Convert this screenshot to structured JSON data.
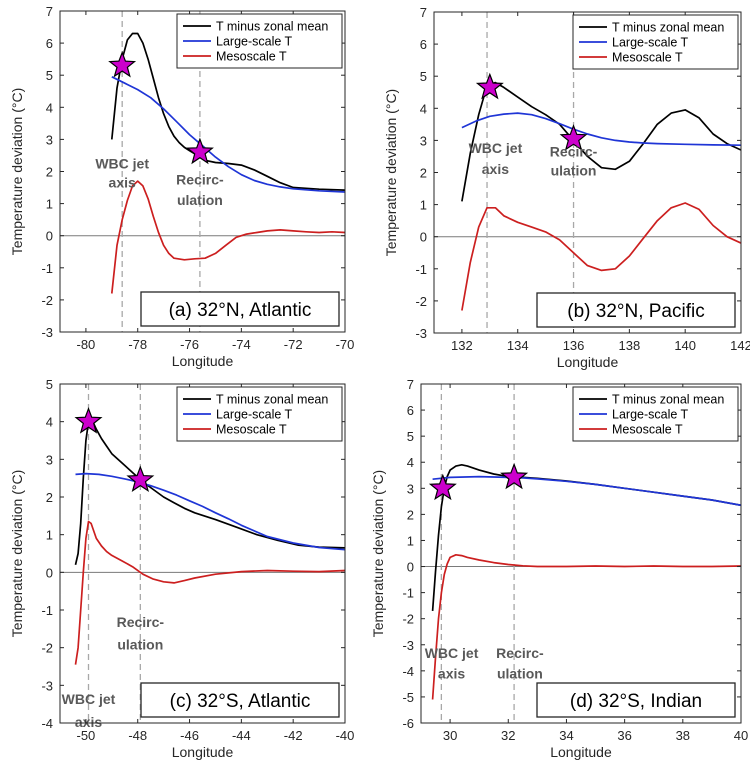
{
  "chart_data": [
    {
      "type": "line",
      "panel_label": "(a) 32°N, Atlantic",
      "xlabel": "Longitude",
      "ylabel": "Temperature deviation (°C)",
      "xlim": [
        -81,
        -70
      ],
      "ylim": [
        -3,
        7
      ],
      "xticks": [
        -80,
        -78,
        -76,
        -74,
        -72,
        -70
      ],
      "yticks": [
        -3,
        -2,
        -1,
        0,
        1,
        2,
        3,
        4,
        5,
        6,
        7
      ],
      "zero_line": true,
      "legend_position": "top-right",
      "series": [
        {
          "name": "T minus zonal mean",
          "color": "#000000",
          "x": [
            -79,
            -78.8,
            -78.6,
            -78.4,
            -78.2,
            -78,
            -77.8,
            -77.6,
            -77.4,
            -77.2,
            -77,
            -76.8,
            -76.6,
            -76.4,
            -76.2,
            -76,
            -75.8,
            -75.6,
            -75.4,
            -75,
            -74.5,
            -74,
            -73.5,
            -73,
            -72.5,
            -72,
            -71,
            -70
          ],
          "y": [
            3.0,
            4.6,
            5.5,
            6.1,
            6.3,
            6.3,
            6.0,
            5.5,
            4.9,
            4.3,
            3.8,
            3.4,
            3.1,
            2.9,
            2.75,
            2.65,
            2.55,
            2.45,
            2.35,
            2.28,
            2.25,
            2.2,
            2.05,
            1.85,
            1.65,
            1.5,
            1.45,
            1.42
          ]
        },
        {
          "name": "Large-scale T",
          "color": "#1f35d6",
          "x": [
            -79,
            -78.5,
            -78,
            -77.5,
            -77,
            -76.5,
            -76,
            -75.5,
            -75,
            -74.5,
            -74,
            -73.5,
            -73,
            -72.5,
            -72,
            -71,
            -70
          ],
          "y": [
            4.95,
            4.75,
            4.55,
            4.3,
            3.95,
            3.55,
            3.15,
            2.8,
            2.45,
            2.15,
            1.9,
            1.72,
            1.6,
            1.52,
            1.46,
            1.4,
            1.36
          ]
        },
        {
          "name": "Mesoscale T",
          "color": "#cc1f1f",
          "x": [
            -79,
            -78.8,
            -78.6,
            -78.4,
            -78.2,
            -78,
            -77.8,
            -77.6,
            -77.4,
            -77.2,
            -77,
            -76.8,
            -76.6,
            -76.2,
            -75.8,
            -75.4,
            -75,
            -74.6,
            -74.2,
            -73.8,
            -73.4,
            -73,
            -72.5,
            -72,
            -71.5,
            -71,
            -70.5,
            -70
          ],
          "y": [
            -1.8,
            -0.3,
            0.5,
            1.1,
            1.55,
            1.7,
            1.55,
            1.15,
            0.6,
            0.1,
            -0.3,
            -0.55,
            -0.7,
            -0.75,
            -0.72,
            -0.7,
            -0.55,
            -0.3,
            -0.05,
            0.05,
            0.1,
            0.15,
            0.18,
            0.15,
            0.12,
            0.1,
            0.12,
            0.1
          ]
        }
      ],
      "vlines": [
        -78.6,
        -75.6
      ],
      "stars": [
        {
          "x": -78.6,
          "y": 5.3
        },
        {
          "x": -75.6,
          "y": 2.6
        }
      ],
      "annotations": [
        {
          "text": "WBC jet",
          "x": -78.6,
          "y": 2.1
        },
        {
          "text": "axis",
          "x": -78.6,
          "y": 1.5
        },
        {
          "text": "Recirc-",
          "x": -75.6,
          "y": 1.6
        },
        {
          "text": "ulation",
          "x": -75.6,
          "y": 0.95
        }
      ]
    },
    {
      "type": "line",
      "panel_label": "(b) 32°N, Pacific",
      "xlabel": "Longitude",
      "ylabel": "Temperature deviation (°C)",
      "xlim": [
        131,
        142
      ],
      "ylim": [
        -3,
        7
      ],
      "xticks": [
        132,
        134,
        136,
        138,
        140,
        142
      ],
      "yticks": [
        -3,
        -2,
        -1,
        0,
        1,
        2,
        3,
        4,
        5,
        6,
        7
      ],
      "zero_line": true,
      "legend_position": "top-right",
      "series": [
        {
          "name": "T minus zonal mean",
          "color": "#000000",
          "x": [
            132,
            132.3,
            132.6,
            132.9,
            133.2,
            133.5,
            134,
            134.5,
            135,
            135.5,
            136,
            136.5,
            137,
            137.5,
            138,
            138.5,
            139,
            139.5,
            140,
            140.5,
            141,
            141.5,
            142
          ],
          "y": [
            1.1,
            2.6,
            3.8,
            4.7,
            4.8,
            4.65,
            4.35,
            4.05,
            3.8,
            3.5,
            3.0,
            2.5,
            2.15,
            2.1,
            2.35,
            2.9,
            3.5,
            3.85,
            3.95,
            3.7,
            3.2,
            2.9,
            2.7
          ]
        },
        {
          "name": "Large-scale T",
          "color": "#1f35d6",
          "x": [
            132,
            132.5,
            133,
            133.5,
            134,
            134.5,
            135,
            135.5,
            136,
            136.5,
            137,
            137.5,
            138,
            138.5,
            139,
            140,
            141,
            142
          ],
          "y": [
            3.4,
            3.6,
            3.75,
            3.82,
            3.85,
            3.8,
            3.68,
            3.52,
            3.35,
            3.2,
            3.08,
            3.0,
            2.95,
            2.92,
            2.9,
            2.88,
            2.86,
            2.85
          ]
        },
        {
          "name": "Mesoscale T",
          "color": "#cc1f1f",
          "x": [
            132,
            132.3,
            132.6,
            132.9,
            133.2,
            133.5,
            134,
            134.5,
            135,
            135.5,
            136,
            136.5,
            137,
            137.5,
            138,
            138.5,
            139,
            139.5,
            140,
            140.5,
            141,
            141.5,
            142
          ],
          "y": [
            -2.3,
            -0.8,
            0.3,
            0.9,
            0.9,
            0.65,
            0.45,
            0.3,
            0.15,
            -0.1,
            -0.5,
            -0.9,
            -1.05,
            -1.0,
            -0.6,
            -0.05,
            0.5,
            0.9,
            1.05,
            0.85,
            0.35,
            0.0,
            -0.2
          ]
        }
      ],
      "vlines": [
        132.9,
        136
      ],
      "stars": [
        {
          "x": 133,
          "y": 4.65
        },
        {
          "x": 136,
          "y": 3.05
        }
      ],
      "annotations": [
        {
          "text": "WBC jet",
          "x": 133.2,
          "y": 2.6
        },
        {
          "text": "axis",
          "x": 133.2,
          "y": 1.95
        },
        {
          "text": "Recirc-",
          "x": 136,
          "y": 2.5
        },
        {
          "text": "ulation",
          "x": 136,
          "y": 1.9
        }
      ]
    },
    {
      "type": "line",
      "panel_label": "(c) 32°S, Atlantic",
      "xlabel": "Longitude",
      "ylabel": "Temperature deviation (°C)",
      "xlim": [
        -51,
        -40
      ],
      "ylim": [
        -4,
        5
      ],
      "xticks": [
        -50,
        -48,
        -46,
        -44,
        -42,
        -40
      ],
      "yticks": [
        -4,
        -3,
        -2,
        -1,
        0,
        1,
        2,
        3,
        4,
        5
      ],
      "zero_line": true,
      "legend_position": "top-right",
      "series": [
        {
          "name": "T minus zonal mean",
          "color": "#000000",
          "x": [
            -50.4,
            -50.3,
            -50.2,
            -50.1,
            -50,
            -49.9,
            -49.8,
            -49.6,
            -49.4,
            -49.2,
            -49,
            -48.6,
            -48.2,
            -47.8,
            -47.4,
            -47,
            -46.6,
            -46.2,
            -45.8,
            -45,
            -44.2,
            -43.4,
            -42.6,
            -41.8,
            -41,
            -40
          ],
          "y": [
            0.2,
            0.5,
            1.3,
            2.5,
            3.5,
            4.0,
            4.1,
            3.8,
            3.55,
            3.35,
            3.15,
            2.9,
            2.65,
            2.4,
            2.2,
            2.0,
            1.85,
            1.7,
            1.58,
            1.4,
            1.2,
            1.0,
            0.85,
            0.72,
            0.67,
            0.65
          ]
        },
        {
          "name": "Large-scale T",
          "color": "#1f35d6",
          "x": [
            -50.4,
            -50,
            -49.5,
            -49,
            -48.5,
            -48,
            -47.5,
            -47,
            -46.5,
            -46,
            -45.5,
            -45,
            -44.5,
            -44,
            -43.5,
            -43,
            -42,
            -41,
            -40
          ],
          "y": [
            2.6,
            2.62,
            2.6,
            2.55,
            2.48,
            2.4,
            2.3,
            2.18,
            2.05,
            1.9,
            1.75,
            1.58,
            1.42,
            1.25,
            1.1,
            0.95,
            0.78,
            0.66,
            0.6
          ]
        },
        {
          "name": "Mesoscale T",
          "color": "#cc1f1f",
          "x": [
            -50.4,
            -50.3,
            -50.2,
            -50.1,
            -50,
            -49.9,
            -49.8,
            -49.6,
            -49.4,
            -49.2,
            -49,
            -48.6,
            -48.2,
            -47.8,
            -47.4,
            -47,
            -46.6,
            -46.2,
            -45.8,
            -45,
            -44,
            -43,
            -42,
            -41,
            -40
          ],
          "y": [
            -2.45,
            -2.0,
            -1.0,
            0.0,
            0.9,
            1.35,
            1.3,
            0.9,
            0.7,
            0.55,
            0.45,
            0.3,
            0.15,
            -0.05,
            -0.18,
            -0.25,
            -0.28,
            -0.22,
            -0.15,
            -0.05,
            0.02,
            0.05,
            0.03,
            0.02,
            0.05
          ]
        }
      ],
      "vlines": [
        -49.9,
        -47.9
      ],
      "stars": [
        {
          "x": -49.9,
          "y": 4.0
        },
        {
          "x": -47.9,
          "y": 2.45
        }
      ],
      "annotations": [
        {
          "text": "Recirc-",
          "x": -47.9,
          "y": -1.45
        },
        {
          "text": "ulation",
          "x": -47.9,
          "y": -2.05
        },
        {
          "text": "WBC jet",
          "x": -49.9,
          "y": -3.5
        },
        {
          "text": "axis",
          "x": -49.9,
          "y": -4.1
        }
      ]
    },
    {
      "type": "line",
      "panel_label": "(d) 32°S, Indian",
      "xlabel": "Longitude",
      "ylabel": "Temperature deviation (°C)",
      "xlim": [
        29,
        40
      ],
      "ylim": [
        -6,
        7
      ],
      "xticks": [
        30,
        32,
        34,
        36,
        38,
        40
      ],
      "yticks": [
        -6,
        -5,
        -4,
        -3,
        -2,
        -1,
        0,
        1,
        2,
        3,
        4,
        5,
        6,
        7
      ],
      "zero_line": true,
      "legend_position": "top-right",
      "series": [
        {
          "name": "T minus zonal mean",
          "color": "#000000",
          "x": [
            29.4,
            29.5,
            29.6,
            29.7,
            29.8,
            29.9,
            30,
            30.2,
            30.4,
            30.6,
            31,
            31.5,
            32,
            32.5,
            33,
            34,
            35,
            36,
            37,
            38,
            39,
            40
          ],
          "y": [
            -1.7,
            -0.2,
            1.2,
            2.3,
            3.0,
            3.45,
            3.7,
            3.85,
            3.9,
            3.85,
            3.7,
            3.55,
            3.45,
            3.42,
            3.38,
            3.28,
            3.15,
            3.0,
            2.85,
            2.7,
            2.55,
            2.35
          ]
        },
        {
          "name": "Large-scale T",
          "color": "#1f35d6",
          "x": [
            29.4,
            30,
            31,
            32,
            32.5,
            33,
            34,
            35,
            36,
            37,
            38,
            39,
            40
          ],
          "y": [
            3.35,
            3.42,
            3.45,
            3.42,
            3.4,
            3.36,
            3.27,
            3.15,
            3.0,
            2.85,
            2.7,
            2.55,
            2.35
          ]
        },
        {
          "name": "Mesoscale T",
          "color": "#cc1f1f",
          "x": [
            29.4,
            29.5,
            29.6,
            29.7,
            29.8,
            29.9,
            30,
            30.2,
            30.4,
            30.6,
            31,
            31.5,
            32,
            32.5,
            33,
            34,
            35,
            36,
            37,
            38,
            39,
            40
          ],
          "y": [
            -5.1,
            -3.5,
            -2.0,
            -1.0,
            -0.3,
            0.1,
            0.35,
            0.45,
            0.42,
            0.35,
            0.25,
            0.15,
            0.08,
            0.03,
            0.0,
            0.0,
            0.02,
            0.0,
            0.02,
            0.0,
            0.0,
            0.02
          ]
        }
      ],
      "vlines": [
        29.7,
        32.2
      ],
      "stars": [
        {
          "x": 29.75,
          "y": 3.0
        },
        {
          "x": 32.2,
          "y": 3.42
        }
      ],
      "annotations": [
        {
          "text": "WBC jet",
          "x": 30.05,
          "y": -3.5
        },
        {
          "text": "axis",
          "x": 30.05,
          "y": -4.3
        },
        {
          "text": "Recirc-",
          "x": 32.4,
          "y": -3.5
        },
        {
          "text": "ulation",
          "x": 32.4,
          "y": -4.3
        }
      ]
    }
  ]
}
